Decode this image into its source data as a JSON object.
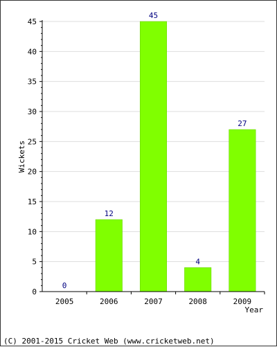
{
  "chart_data": {
    "type": "bar",
    "categories": [
      "2005",
      "2006",
      "2007",
      "2008",
      "2009"
    ],
    "values": [
      0,
      12,
      45,
      4,
      27
    ],
    "data_labels": [
      "0",
      "12",
      "45",
      "4",
      "27"
    ],
    "xlabel": "Year",
    "ylabel": "Wickets",
    "ylim": [
      0,
      45
    ],
    "y_ticks": [
      0,
      5,
      10,
      15,
      20,
      25,
      30,
      35,
      40,
      45
    ],
    "grid": true,
    "bar_color": "#80ff00",
    "bar_stroke_color": "#66cc00",
    "grid_color": "#dddddd",
    "label_color": "#000080"
  },
  "footer": {
    "text": "(C) 2001-2015 Cricket Web (www.cricketweb.net)"
  }
}
